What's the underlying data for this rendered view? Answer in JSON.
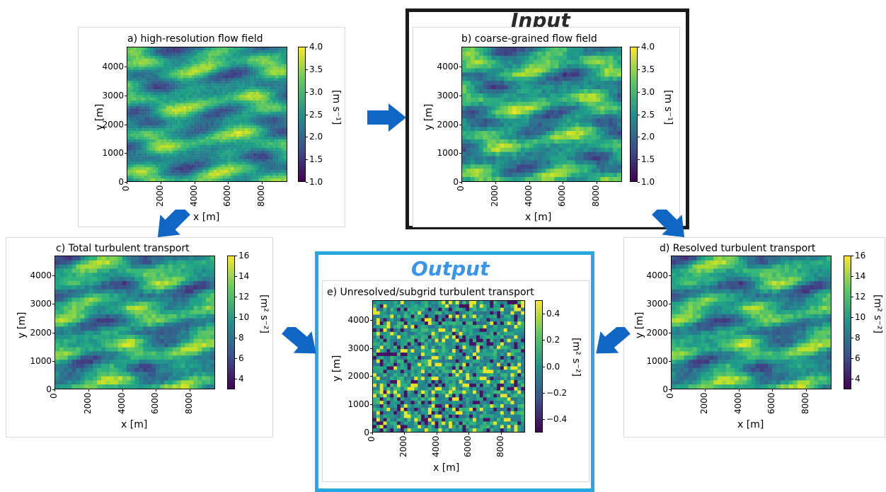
{
  "frames": {
    "input": {
      "title": "Input",
      "color": "#1a1a1a"
    },
    "output": {
      "title": "Output",
      "color": "#29a8e0",
      "title_color": "#3a95e6"
    }
  },
  "arrow_color": "#1066c4",
  "panels": [
    {
      "id": "a",
      "title": "a) high-resolution flow field",
      "xlabel": "x [m]",
      "ylabel": "y [m]",
      "xticks": [
        "0",
        "2000",
        "4000",
        "6000",
        "8000"
      ],
      "yticks": [
        "0",
        "1000",
        "2000",
        "3000",
        "4000"
      ],
      "colorbar": {
        "label": "[m s⁻¹]",
        "ticks": [
          "1.0",
          "1.5",
          "2.0",
          "2.5",
          "3.0",
          "3.5",
          "4.0"
        ],
        "range": [
          1.0,
          4.0
        ]
      }
    },
    {
      "id": "b",
      "title": "b) coarse-grained flow field",
      "xlabel": "x [m]",
      "ylabel": "y [m]",
      "xticks": [
        "0",
        "2000",
        "4000",
        "6000",
        "8000"
      ],
      "yticks": [
        "0",
        "1000",
        "2000",
        "3000",
        "4000"
      ],
      "colorbar": {
        "label": "[m s⁻¹]",
        "ticks": [
          "1.0",
          "1.5",
          "2.0",
          "2.5",
          "3.0",
          "3.5",
          "4.0"
        ],
        "range": [
          1.0,
          4.0
        ]
      }
    },
    {
      "id": "c",
      "title": "c) Total turbulent transport",
      "xlabel": "x [m]",
      "ylabel": "y [m]",
      "xticks": [
        "0",
        "2000",
        "4000",
        "6000",
        "8000"
      ],
      "yticks": [
        "0",
        "1000",
        "2000",
        "3000",
        "4000"
      ],
      "colorbar": {
        "label": "[m² s⁻²]",
        "ticks": [
          "4",
          "6",
          "8",
          "10",
          "12",
          "14",
          "16"
        ],
        "range": [
          3,
          16
        ]
      }
    },
    {
      "id": "d",
      "title": "d) Resolved turbulent transport",
      "xlabel": "x [m]",
      "ylabel": "y [m]",
      "xticks": [
        "0",
        "2000",
        "4000",
        "6000",
        "8000"
      ],
      "yticks": [
        "0",
        "1000",
        "2000",
        "3000",
        "4000"
      ],
      "colorbar": {
        "label": "[m² s⁻²]",
        "ticks": [
          "4",
          "6",
          "8",
          "10",
          "12",
          "14",
          "16"
        ],
        "range": [
          3,
          16
        ]
      }
    },
    {
      "id": "e",
      "title": "e) Unresolved/subgrid turbulent transport",
      "xlabel": "x [m]",
      "ylabel": "y [m]",
      "xticks": [
        "0",
        "2000",
        "4000",
        "6000",
        "8000"
      ],
      "yticks": [
        "0",
        "1000",
        "2000",
        "3000",
        "4000"
      ],
      "colorbar": {
        "label": "[m² s⁻²]",
        "ticks": [
          "-0.4",
          "-0.2",
          "0.0",
          "0.2",
          "0.4"
        ],
        "range": [
          -0.5,
          0.5
        ]
      }
    }
  ]
}
